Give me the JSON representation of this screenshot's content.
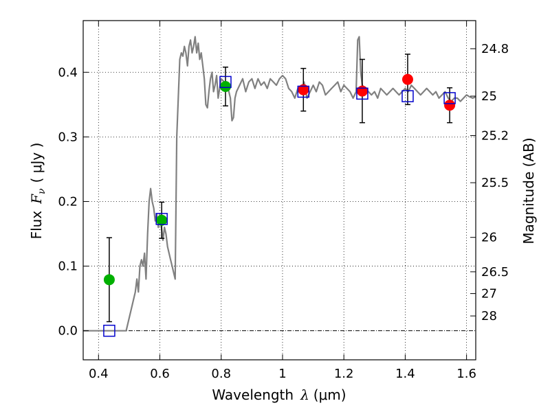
{
  "chart_data": {
    "type": "scatter",
    "xlabel_text": "Wavelength",
    "xlabel_symbol": "λ",
    "xlabel_unit": "(μm)",
    "ylabel_text": "Flux",
    "ylabel_symbol": "F",
    "ylabel_subscript": "ν",
    "ylabel_unit": "( μJy )",
    "y2label": "Magnitude (AB)",
    "xlim": [
      0.35,
      1.63
    ],
    "ylim": [
      -0.045,
      0.48
    ],
    "grid": true,
    "x_ticks": [
      0.4,
      0.6,
      0.8,
      1.0,
      1.2,
      1.4,
      1.6
    ],
    "x_tick_labels": [
      "0.4",
      "0.6",
      "0.8",
      "1",
      "1.2",
      "1.4",
      "1.6"
    ],
    "y_ticks": [
      0.0,
      0.1,
      0.2,
      0.3,
      0.4
    ],
    "y_tick_labels": [
      "0.0",
      "0.1",
      "0.2",
      "0.3",
      "0.4"
    ],
    "y2_ticks": [
      {
        "label": "24.8",
        "flux": 0.4365
      },
      {
        "label": "25",
        "flux": 0.3631
      },
      {
        "label": "25.2",
        "flux": 0.302
      },
      {
        "label": "25.5",
        "flux": 0.2291
      },
      {
        "label": "26",
        "flux": 0.1445
      },
      {
        "label": "26.5",
        "flux": 0.0912
      },
      {
        "label": "27",
        "flux": 0.0575
      },
      {
        "label": "28",
        "flux": 0.0229
      }
    ],
    "model_spectrum": {
      "color": "#808080",
      "x": [
        0.35,
        0.49,
        0.51,
        0.52,
        0.525,
        0.53,
        0.535,
        0.54,
        0.545,
        0.55,
        0.555,
        0.56,
        0.565,
        0.57,
        0.575,
        0.58,
        0.585,
        0.59,
        0.595,
        0.6,
        0.605,
        0.61,
        0.615,
        0.62,
        0.625,
        0.63,
        0.635,
        0.64,
        0.645,
        0.65,
        0.655,
        0.66,
        0.665,
        0.67,
        0.675,
        0.68,
        0.685,
        0.69,
        0.695,
        0.7,
        0.705,
        0.71,
        0.715,
        0.72,
        0.725,
        0.73,
        0.735,
        0.74,
        0.745,
        0.75,
        0.755,
        0.76,
        0.765,
        0.77,
        0.775,
        0.78,
        0.785,
        0.79,
        0.8,
        0.81,
        0.82,
        0.83,
        0.835,
        0.84,
        0.845,
        0.85,
        0.86,
        0.87,
        0.88,
        0.89,
        0.9,
        0.91,
        0.92,
        0.93,
        0.94,
        0.95,
        0.96,
        0.97,
        0.98,
        0.99,
        1.0,
        1.01,
        1.02,
        1.03,
        1.04,
        1.05,
        1.06,
        1.07,
        1.08,
        1.09,
        1.1,
        1.11,
        1.12,
        1.13,
        1.14,
        1.15,
        1.16,
        1.17,
        1.18,
        1.19,
        1.2,
        1.21,
        1.22,
        1.23,
        1.24,
        1.245,
        1.25,
        1.255,
        1.26,
        1.27,
        1.28,
        1.29,
        1.3,
        1.31,
        1.32,
        1.33,
        1.34,
        1.35,
        1.36,
        1.37,
        1.38,
        1.39,
        1.4,
        1.41,
        1.42,
        1.43,
        1.44,
        1.45,
        1.46,
        1.47,
        1.48,
        1.49,
        1.5,
        1.51,
        1.52,
        1.53,
        1.54,
        1.55,
        1.56,
        1.57,
        1.58,
        1.59,
        1.6,
        1.61,
        1.62,
        1.63
      ],
      "y": [
        0.0,
        0.0,
        0.04,
        0.06,
        0.08,
        0.06,
        0.1,
        0.11,
        0.1,
        0.12,
        0.08,
        0.15,
        0.2,
        0.22,
        0.2,
        0.19,
        0.17,
        0.18,
        0.16,
        0.18,
        0.16,
        0.14,
        0.16,
        0.15,
        0.13,
        0.12,
        0.11,
        0.1,
        0.09,
        0.08,
        0.3,
        0.36,
        0.42,
        0.43,
        0.425,
        0.44,
        0.43,
        0.41,
        0.44,
        0.45,
        0.43,
        0.44,
        0.455,
        0.43,
        0.445,
        0.42,
        0.43,
        0.41,
        0.39,
        0.35,
        0.345,
        0.37,
        0.39,
        0.4,
        0.37,
        0.38,
        0.395,
        0.36,
        0.39,
        0.385,
        0.38,
        0.36,
        0.325,
        0.33,
        0.36,
        0.37,
        0.38,
        0.39,
        0.37,
        0.385,
        0.39,
        0.375,
        0.39,
        0.38,
        0.385,
        0.375,
        0.39,
        0.385,
        0.38,
        0.39,
        0.395,
        0.39,
        0.375,
        0.37,
        0.36,
        0.375,
        0.37,
        0.385,
        0.36,
        0.37,
        0.38,
        0.37,
        0.385,
        0.38,
        0.365,
        0.37,
        0.375,
        0.38,
        0.385,
        0.37,
        0.38,
        0.375,
        0.37,
        0.36,
        0.37,
        0.45,
        0.455,
        0.4,
        0.38,
        0.375,
        0.37,
        0.365,
        0.37,
        0.36,
        0.375,
        0.37,
        0.365,
        0.37,
        0.375,
        0.37,
        0.365,
        0.37,
        0.375,
        0.37,
        0.38,
        0.375,
        0.37,
        0.365,
        0.37,
        0.375,
        0.37,
        0.365,
        0.37,
        0.36,
        0.365,
        0.37,
        0.36,
        0.355,
        0.36,
        0.36,
        0.355,
        0.36,
        0.365,
        0.362,
        0.36,
        0.362
      ]
    },
    "series": [
      {
        "marker": "circle",
        "color": "#00b000",
        "points": [
          {
            "x": 0.435,
            "y": 0.079,
            "err": 0.065
          },
          {
            "x": 0.606,
            "y": 0.171,
            "err": 0.028
          },
          {
            "x": 0.814,
            "y": 0.378,
            "err": 0.03
          }
        ]
      },
      {
        "marker": "circle",
        "color": "#ff0000",
        "points": [
          {
            "x": 1.068,
            "y": 0.373,
            "err": 0.033
          },
          {
            "x": 1.26,
            "y": 0.371,
            "err": 0.049
          },
          {
            "x": 1.408,
            "y": 0.389,
            "err": 0.039
          },
          {
            "x": 1.545,
            "y": 0.349,
            "err": 0.027
          }
        ]
      },
      {
        "marker": "open-square",
        "color": "#0000cc",
        "points": [
          {
            "x": 0.435,
            "y": 0.0
          },
          {
            "x": 0.606,
            "y": 0.173
          },
          {
            "x": 0.814,
            "y": 0.385
          },
          {
            "x": 1.068,
            "y": 0.37
          },
          {
            "x": 1.26,
            "y": 0.367
          },
          {
            "x": 1.408,
            "y": 0.363
          },
          {
            "x": 1.545,
            "y": 0.36
          }
        ]
      }
    ]
  }
}
